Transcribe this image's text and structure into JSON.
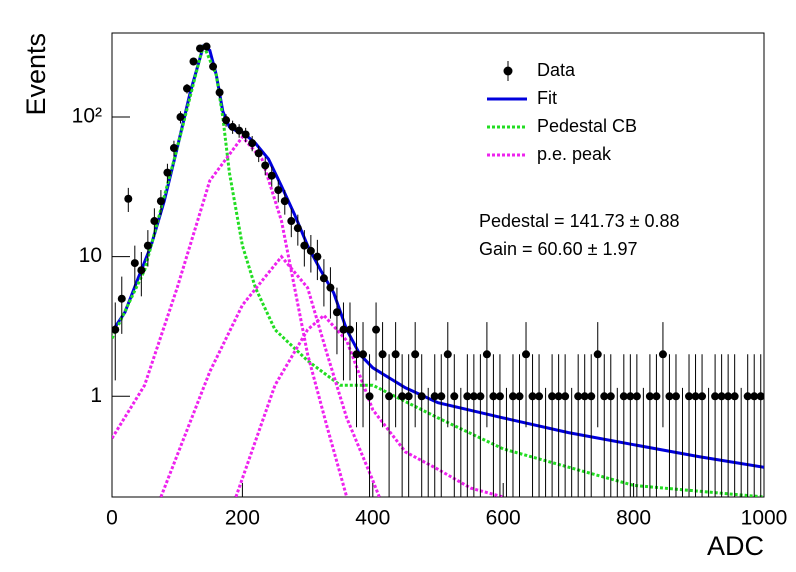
{
  "chart_data": {
    "type": "errorbar",
    "name": "Data",
    "color": "#000000",
    "x_label": "ADC",
    "y_label": "Events",
    "log_y": true,
    "legend": "top right",
    "xlim": [
      0,
      1000
    ],
    "ylim": [
      0.19,
      400
    ],
    "xticks": [
      0,
      200,
      400,
      600,
      800,
      1000
    ],
    "yticks": [
      1,
      10,
      {
        "value": 100,
        "label": "10²"
      }
    ],
    "x": [
      5,
      15,
      25,
      35,
      45,
      55,
      65,
      75,
      85,
      95,
      105,
      115,
      125,
      135,
      145,
      155,
      165,
      175,
      185,
      195,
      205,
      215,
      225,
      235,
      245,
      255,
      265,
      275,
      285,
      295,
      305,
      315,
      325,
      335,
      345,
      355,
      365,
      375,
      385,
      395,
      405,
      415,
      425,
      435,
      445,
      455,
      465,
      475,
      485,
      495,
      505,
      515,
      525,
      535,
      545,
      555,
      565,
      575,
      585,
      595,
      605,
      615,
      625,
      635,
      645,
      655,
      665,
      675,
      685,
      695,
      705,
      715,
      725,
      735,
      745,
      755,
      765,
      775,
      785,
      795,
      805,
      815,
      825,
      835,
      845,
      855,
      865,
      875,
      885,
      895,
      905,
      915,
      925,
      935,
      945,
      955,
      965,
      975,
      985,
      995
    ],
    "values": [
      3,
      5,
      26,
      9,
      8,
      12,
      18,
      25,
      40,
      60,
      100,
      160,
      250,
      310,
      320,
      230,
      150,
      95,
      85,
      80,
      75,
      65,
      55,
      45,
      38,
      30,
      25,
      18,
      16,
      12,
      11,
      10,
      7,
      6,
      4,
      3,
      3,
      2,
      2,
      1,
      3,
      2,
      1,
      2,
      1,
      1,
      2,
      1,
      0,
      1,
      1,
      2,
      1,
      0,
      1,
      1,
      1,
      2,
      1,
      1,
      0,
      1,
      1,
      2,
      1,
      1,
      0,
      1,
      1,
      1,
      0,
      1,
      1,
      1,
      2,
      1,
      1,
      0,
      1,
      1,
      1,
      0,
      1,
      1,
      2,
      1,
      1,
      0,
      1,
      1,
      1,
      0,
      1,
      1,
      1,
      1,
      0,
      1,
      1,
      1
    ],
    "errors": [
      1.7,
      2.2,
      5.1,
      3,
      2.8,
      3.5,
      4.2,
      5,
      6.3,
      7.7,
      10,
      12.6,
      15.8,
      17.6,
      17.9,
      15.2,
      12.2,
      9.7,
      9.2,
      8.9,
      8.7,
      8.1,
      7.4,
      6.7,
      6.2,
      5.5,
      5,
      4.2,
      4,
      3.5,
      3.3,
      3.2,
      2.6,
      2.4,
      2,
      1.7,
      1.7,
      1.4,
      1.4,
      1,
      1.7,
      1.4,
      1,
      1.4,
      1,
      1,
      1.4,
      1,
      1.15,
      1,
      1,
      1.4,
      1,
      1.15,
      1,
      1,
      1,
      1.4,
      1,
      1,
      1.15,
      1,
      1,
      1.4,
      1,
      1,
      1.15,
      1,
      1,
      1,
      1.15,
      1,
      1,
      1,
      1.4,
      1,
      1,
      1.15,
      1,
      1,
      1,
      1.15,
      1,
      1,
      1.4,
      1,
      1,
      1.15,
      1,
      1,
      1,
      1.15,
      1,
      1,
      1,
      1,
      1.15,
      1,
      1,
      1
    ],
    "curves": [
      {
        "name": "Fit",
        "color": "#0000dd",
        "style": "solid",
        "x": [
          0,
          20,
          40,
          60,
          80,
          100,
          120,
          140,
          150,
          160,
          170,
          180,
          190,
          200,
          220,
          240,
          260,
          280,
          300,
          320,
          340,
          360,
          380,
          400,
          450,
          500,
          600,
          700,
          800,
          900,
          1000
        ],
        "values": [
          2.9,
          4,
          7,
          12,
          25,
          60,
          150,
          320,
          300,
          200,
          110,
          85,
          80,
          78,
          65,
          50,
          32,
          20,
          12,
          8,
          5.5,
          3,
          2,
          1.6,
          1.15,
          0.9,
          0.7,
          0.55,
          0.45,
          0.37,
          0.31
        ]
      },
      {
        "name": "Pedestal CB",
        "color": "#22dd22",
        "style": "dotted",
        "x": [
          0,
          50,
          100,
          140,
          160,
          170,
          180,
          200,
          220,
          250,
          300,
          350,
          400,
          500,
          600,
          800,
          1000
        ],
        "values": [
          2.6,
          8,
          60,
          330,
          200,
          100,
          40,
          12,
          6,
          3,
          1.8,
          1.2,
          1.2,
          0.7,
          0.42,
          0.23,
          0.19
        ]
      },
      {
        "name": "p.e. peak",
        "color": "#ee22ee",
        "style": "dotted",
        "x": [
          0,
          50,
          100,
          150,
          200,
          230,
          260,
          280,
          300,
          330,
          360,
          null,
          75,
          150,
          200,
          260,
          300,
          330,
          360,
          400,
          410,
          null,
          190,
          250,
          300,
          325,
          360,
          400,
          450,
          500,
          550,
          600
        ],
        "values": [
          0.5,
          1.2,
          6,
          35,
          72,
          50,
          18,
          6,
          2,
          0.6,
          0.19,
          null,
          0.19,
          1.5,
          4.5,
          10,
          6,
          2,
          0.7,
          0.25,
          0.19,
          null,
          0.19,
          1.2,
          3,
          3.8,
          2.5,
          0.8,
          0.4,
          0.3,
          0.22,
          0.19
        ]
      }
    ],
    "annotations": [
      "Pedestal = 141.73 ± 0.88",
      "Gain = 60.60 ± 1.97"
    ]
  }
}
